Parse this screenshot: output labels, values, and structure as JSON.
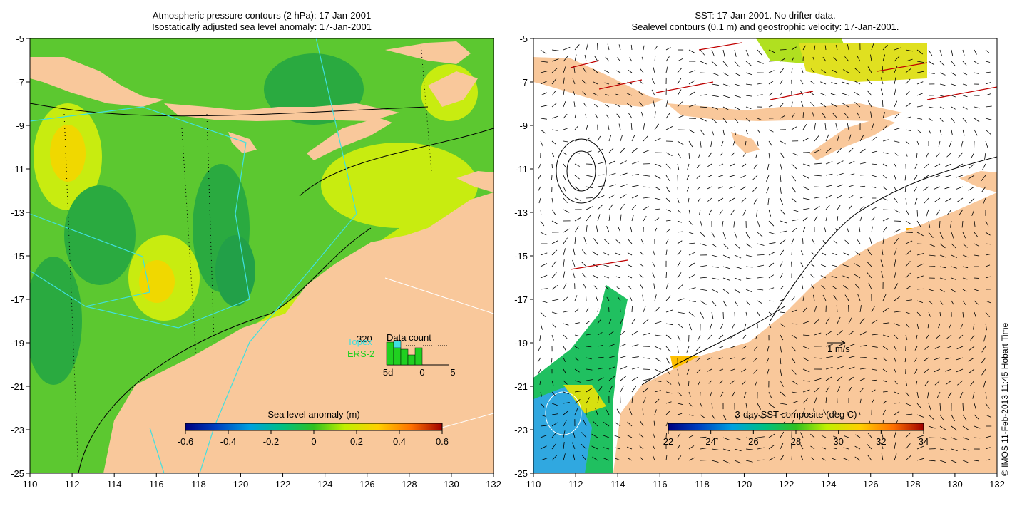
{
  "left_panel": {
    "title_line1": "Atmospheric pressure contours (2 hPa): 17-Jan-2001",
    "title_line2": "Isostatically adjusted sea level anomaly: 17-Jan-2001",
    "x_ticks": [
      "110",
      "112",
      "114",
      "116",
      "118",
      "120",
      "122",
      "124",
      "126",
      "128",
      "130",
      "132"
    ],
    "y_ticks": [
      "-5",
      "-7",
      "-9",
      "-11",
      "-13",
      "-15",
      "-17",
      "-19",
      "-21",
      "-23",
      "-25"
    ],
    "colorbar": {
      "title": "Sea level anomaly (m)",
      "labels": [
        "-0.6",
        "-0.4",
        "-0.2",
        "0",
        "0.2",
        "0.4",
        "0.6"
      ],
      "colors": [
        "#000080",
        "#0050d0",
        "#00a0e0",
        "#00c890",
        "#20b040",
        "#80e020",
        "#e0f000",
        "#ffb000",
        "#ff7000",
        "#b01000"
      ]
    },
    "legend": {
      "count_value": "320",
      "topex_label": "Topex",
      "ers2_label": "ERS-2",
      "data_count_title": "Data count",
      "hist_ticks": [
        "-5d",
        "0",
        "5"
      ],
      "topex_color": "#40e0e0",
      "ers2_color": "#20d020"
    }
  },
  "right_panel": {
    "title_line1": "SST: 17-Jan-2001. No drifter data.",
    "title_line2": "Sealevel contours (0.1 m) and geostrophic velocity: 17-Jan-2001.",
    "x_ticks": [
      "110",
      "112",
      "114",
      "116",
      "118",
      "120",
      "122",
      "124",
      "126",
      "128",
      "130",
      "132"
    ],
    "y_ticks": [
      "-5",
      "-7",
      "-9",
      "-11",
      "-13",
      "-15",
      "-17",
      "-19",
      "-21",
      "-23",
      "-25"
    ],
    "scale_label": "1 m/s",
    "colorbar": {
      "title": "3-day SST composite (deg C)",
      "labels": [
        "22",
        "24",
        "26",
        "28",
        "30",
        "32",
        "34"
      ],
      "colors": [
        "#000080",
        "#0050d0",
        "#00a0e0",
        "#00c890",
        "#20b040",
        "#80e020",
        "#e0f000",
        "#ffb000",
        "#ff7000",
        "#b01000"
      ]
    }
  },
  "colors": {
    "land": "#f9c89b",
    "sea_green": "#5cc830",
    "sea_light": "#9ee020",
    "sea_yellow": "#e2f010",
    "sea_dark": "#2aaa40"
  },
  "copyright": "© IMOS 11-Feb-2013 11:45 Hobart Time"
}
